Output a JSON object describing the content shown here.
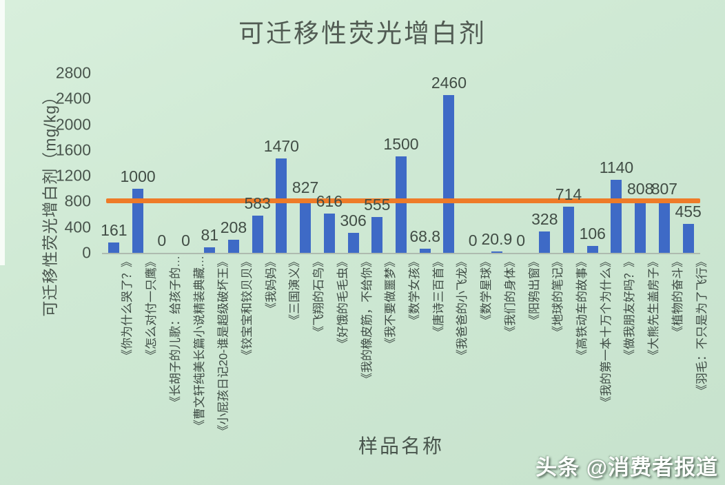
{
  "page_title": "可迁移性荧光增白剂",
  "watermark": {
    "text": "头条 @消费者报道"
  },
  "chart_data": {
    "type": "bar",
    "title": "可迁移性荧光增白剂",
    "xlabel": "样品名称",
    "ylabel": "可迁移性荧光增白剂（mg/kg）",
    "ylim": [
      0,
      2800
    ],
    "yticks": [
      0,
      400,
      800,
      1200,
      1600,
      2000,
      2400,
      2800
    ],
    "grid": false,
    "legend": "none",
    "bar_color": "#3e6ac6",
    "reference_line": {
      "value": 800,
      "color": "#ee7b28"
    },
    "categories": [
      "《你为什么哭了？》",
      "《怎么对付一只鹰》",
      "《长胡子的儿歌：给孩子的…",
      "《曹文轩纯美长篇小说精装典藏…",
      "《小屁孩日记20-谁是超级破坏王》",
      "《铰宝宝和铰贝贝》",
      "《我妈妈》",
      "《三国演义》",
      "《飞翔的石鸟》",
      "《好饿的毛毛虫》",
      "《我的橡皮筋，不给你》",
      "《我不要做噩梦》",
      "《数学女孩》",
      "《唐诗三百首》",
      "《我爸爸的小飞龙》",
      "《数学星球》",
      "《我们的身体》",
      "《阳鸦出窗》",
      "《地球的笔记》",
      "《高铁动车的故事》",
      "《我的第一本十万个为什么》",
      "《做我朋友好吗？》",
      "《大熊先生盖房子》",
      "《植物的奋斗》",
      "《羽毛：不只是为了飞行》"
    ],
    "values": [
      161,
      1000,
      0,
      0,
      81,
      208,
      583,
      1470,
      827,
      616,
      306,
      555,
      1500,
      68.8,
      2460,
      0,
      20.9,
      0,
      328,
      714,
      106,
      1140,
      808,
      807,
      455
    ],
    "value_labels": [
      "161",
      "1000",
      "0",
      "0",
      "81",
      "208",
      "583",
      "1470",
      "827",
      "616",
      "306",
      "555",
      "1500",
      "68.8",
      "2460",
      "0",
      "20.9",
      "0",
      "328",
      "714",
      "106",
      "1140",
      "808",
      "807",
      "455"
    ]
  }
}
